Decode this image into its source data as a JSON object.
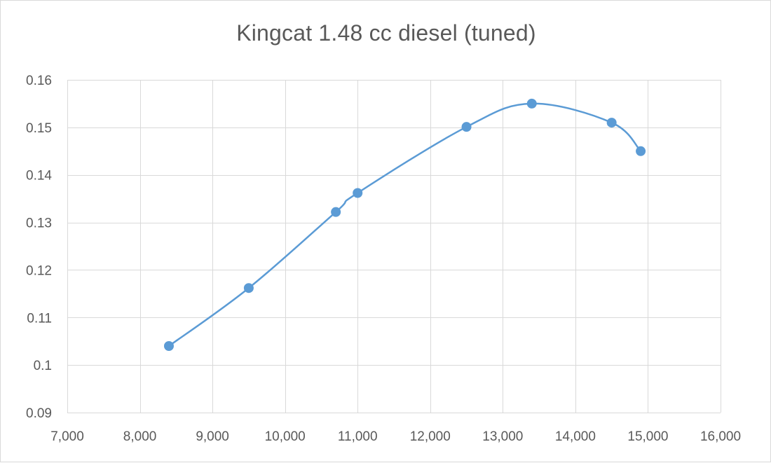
{
  "chart_data": {
    "type": "scatter",
    "title": "Kingcat 1.48 cc diesel  (tuned)",
    "xlabel": "",
    "ylabel": "",
    "xlim": [
      7000,
      16000
    ],
    "ylim": [
      0.09,
      0.16
    ],
    "x_ticks": [
      7000,
      8000,
      9000,
      10000,
      11000,
      12000,
      13000,
      14000,
      15000,
      16000
    ],
    "x_tick_labels": [
      "7,000",
      "8,000",
      "9,000",
      "10,000",
      "11,000",
      "12,000",
      "13,000",
      "14,000",
      "15,000",
      "16,000"
    ],
    "y_ticks": [
      0.09,
      0.1,
      0.11,
      0.12,
      0.13,
      0.14,
      0.15,
      0.16
    ],
    "y_tick_labels": [
      "0.09",
      "0.1",
      "0.11",
      "0.12",
      "0.13",
      "0.14",
      "0.15",
      "0.16"
    ],
    "grid": true,
    "smoothed_line": true,
    "legend": "none",
    "series": [
      {
        "color": "#5b9bd5",
        "points": [
          {
            "x": 8400,
            "y": 0.104
          },
          {
            "x": 9500,
            "y": 0.1162
          },
          {
            "x": 10700,
            "y": 0.1322
          },
          {
            "x": 11000,
            "y": 0.1362
          },
          {
            "x": 12500,
            "y": 0.1501
          },
          {
            "x": 13400,
            "y": 0.155
          },
          {
            "x": 14500,
            "y": 0.151
          },
          {
            "x": 14900,
            "y": 0.145
          }
        ]
      }
    ]
  },
  "colors": {
    "grid": "#d9d9d9",
    "text": "#595959"
  }
}
